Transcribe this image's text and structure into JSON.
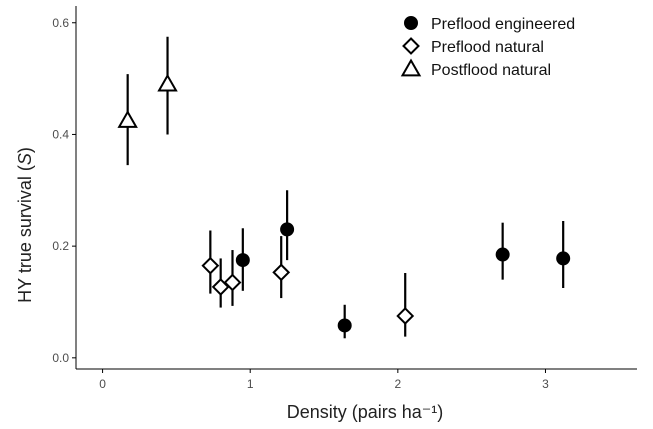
{
  "chart_data": {
    "type": "scatter",
    "xlabel": "Density (pairs ha⁻¹)",
    "ylabel_prefix": "HY true survival (",
    "ylabel_symbol": "S",
    "ylabel_suffix": ")",
    "xlim": [
      -0.18,
      3.62
    ],
    "ylim": [
      -0.02,
      0.63
    ],
    "x_ticks": [
      0,
      1,
      2,
      3
    ],
    "x_tick_labels": [
      "0",
      "1",
      "2",
      "3"
    ],
    "y_ticks": [
      0.0,
      0.2,
      0.4,
      0.6
    ],
    "y_tick_labels": [
      "0.0",
      "0.2",
      "0.4",
      "0.6"
    ],
    "grid": false,
    "legend_position": "top-right",
    "series": [
      {
        "name": "Preflood engineered",
        "marker": "filled-circle",
        "points": [
          {
            "x": 0.95,
            "y": 0.175,
            "lo": 0.12,
            "hi": 0.232
          },
          {
            "x": 1.25,
            "y": 0.23,
            "lo": 0.175,
            "hi": 0.3
          },
          {
            "x": 1.64,
            "y": 0.058,
            "lo": 0.035,
            "hi": 0.095
          },
          {
            "x": 2.71,
            "y": 0.185,
            "lo": 0.14,
            "hi": 0.242
          },
          {
            "x": 3.12,
            "y": 0.178,
            "lo": 0.125,
            "hi": 0.245
          }
        ]
      },
      {
        "name": "Preflood natural",
        "marker": "open-diamond",
        "points": [
          {
            "x": 0.73,
            "y": 0.165,
            "lo": 0.115,
            "hi": 0.228
          },
          {
            "x": 0.8,
            "y": 0.127,
            "lo": 0.09,
            "hi": 0.178
          },
          {
            "x": 0.88,
            "y": 0.135,
            "lo": 0.093,
            "hi": 0.193
          },
          {
            "x": 1.21,
            "y": 0.153,
            "lo": 0.107,
            "hi": 0.218
          },
          {
            "x": 2.05,
            "y": 0.075,
            "lo": 0.038,
            "hi": 0.152
          }
        ]
      },
      {
        "name": "Postflood natural",
        "marker": "open-triangle",
        "points": [
          {
            "x": 0.17,
            "y": 0.425,
            "lo": 0.345,
            "hi": 0.508
          },
          {
            "x": 0.44,
            "y": 0.49,
            "lo": 0.4,
            "hi": 0.575
          }
        ]
      }
    ]
  }
}
